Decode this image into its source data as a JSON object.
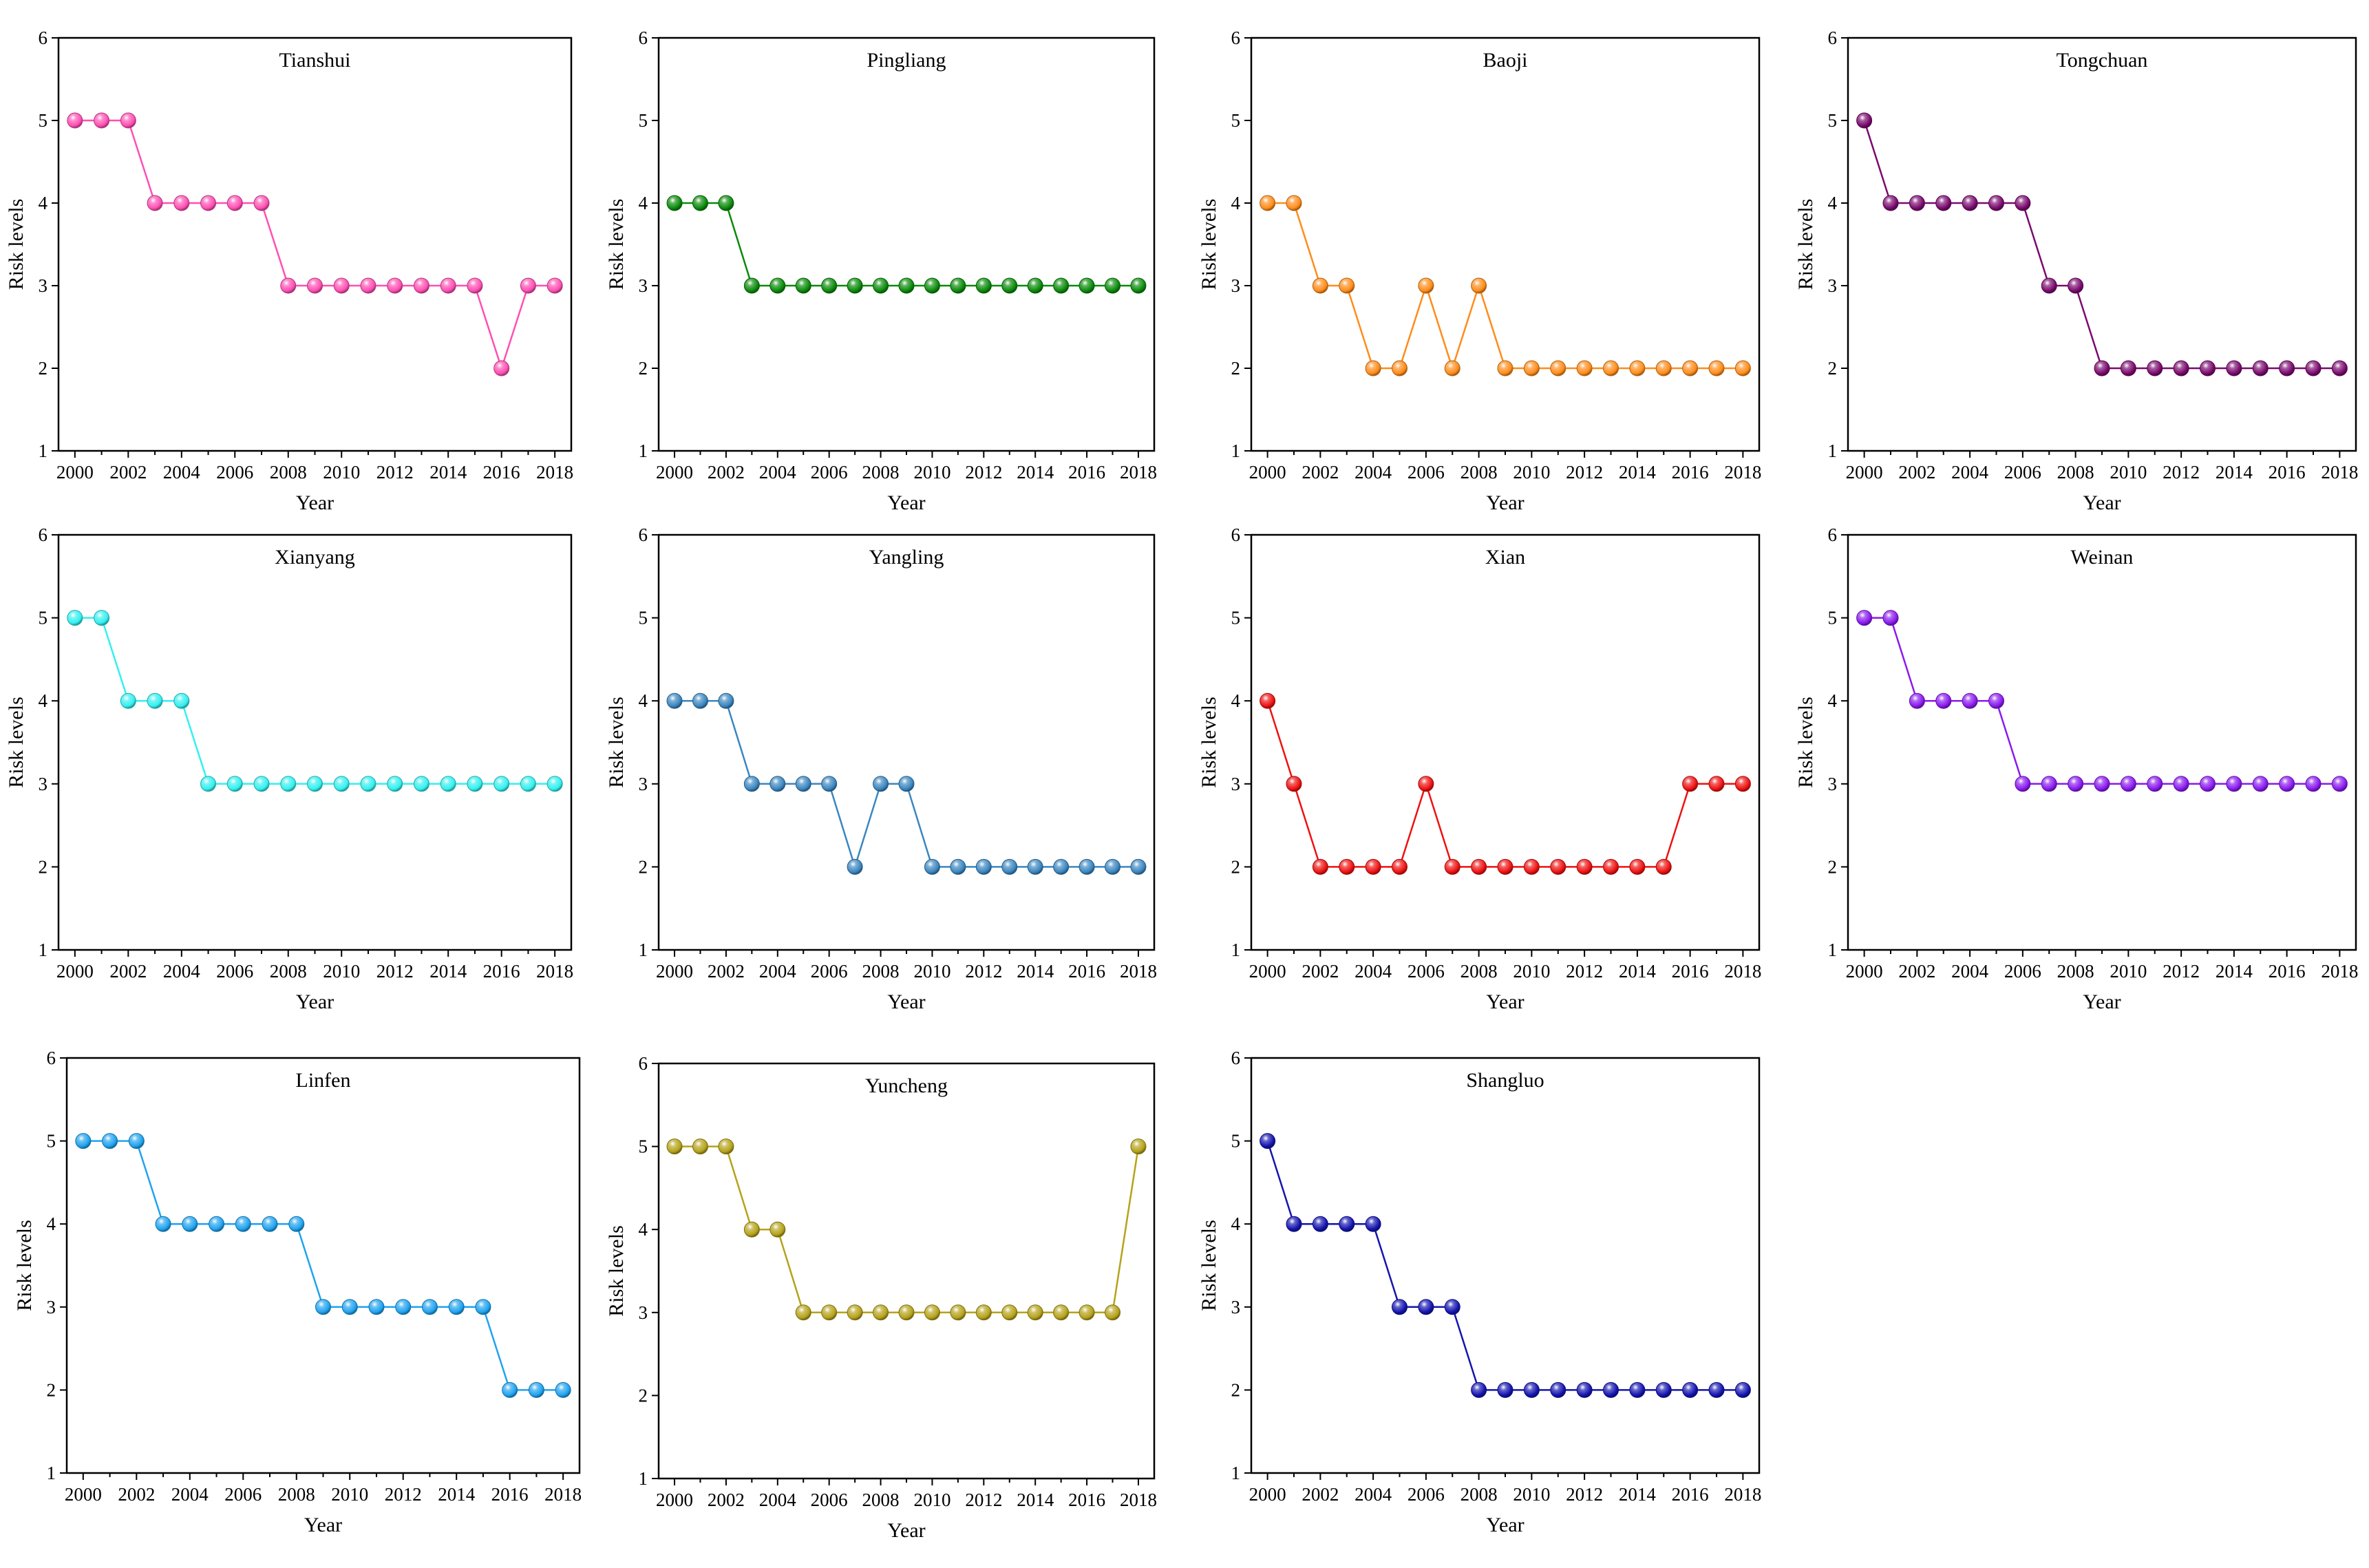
{
  "figure": {
    "years": [
      2000,
      2001,
      2002,
      2003,
      2004,
      2005,
      2006,
      2007,
      2008,
      2009,
      2010,
      2011,
      2012,
      2013,
      2014,
      2015,
      2016,
      2017,
      2018
    ]
  },
  "chart_data": [
    {
      "type": "line",
      "title": "Tianshui",
      "xlabel": "Year",
      "ylabel": "Risk levels",
      "ylim": [
        1,
        6
      ],
      "xlim": [
        2000,
        2018
      ],
      "color": "#ff4fb3",
      "xticks": [
        "2000",
        "2002",
        "2004",
        "2006",
        "2008",
        "2010",
        "2012",
        "2014",
        "2016",
        "2018"
      ],
      "yticks": [
        "1",
        "2",
        "3",
        "4",
        "5",
        "6"
      ],
      "values": [
        5,
        5,
        5,
        4,
        4,
        4,
        4,
        4,
        3,
        3,
        3,
        3,
        3,
        3,
        3,
        3,
        2,
        3,
        3
      ]
    },
    {
      "type": "line",
      "title": "Pingliang",
      "xlabel": "Year",
      "ylabel": "Risk levels",
      "ylim": [
        1,
        6
      ],
      "xlim": [
        2000,
        2018
      ],
      "color": "#0a8a0a",
      "xticks": [
        "2000",
        "2002",
        "2004",
        "2006",
        "2008",
        "2010",
        "2012",
        "2014",
        "2016",
        "2018"
      ],
      "yticks": [
        "1",
        "2",
        "3",
        "4",
        "5",
        "6"
      ],
      "values": [
        4,
        4,
        4,
        3,
        3,
        3,
        3,
        3,
        3,
        3,
        3,
        3,
        3,
        3,
        3,
        3,
        3,
        3,
        3
      ]
    },
    {
      "type": "line",
      "title": "Baoji",
      "xlabel": "Year",
      "ylabel": "Risk levels",
      "ylim": [
        1,
        6
      ],
      "xlim": [
        2000,
        2018
      ],
      "color": "#ff8c1a",
      "xticks": [
        "2000",
        "2002",
        "2004",
        "2006",
        "2008",
        "2010",
        "2012",
        "2014",
        "2016",
        "2018"
      ],
      "yticks": [
        "1",
        "2",
        "3",
        "4",
        "5",
        "6"
      ],
      "values": [
        4,
        4,
        3,
        3,
        2,
        2,
        3,
        2,
        3,
        2,
        2,
        2,
        2,
        2,
        2,
        2,
        2,
        2,
        2
      ]
    },
    {
      "type": "line",
      "title": "Tongchuan",
      "xlabel": "Year",
      "ylabel": "Risk levels",
      "ylim": [
        1,
        6
      ],
      "xlim": [
        2000,
        2018
      ],
      "color": "#7a0a6e",
      "xticks": [
        "2000",
        "2002",
        "2004",
        "2006",
        "2008",
        "2010",
        "2012",
        "2014",
        "2016",
        "2018"
      ],
      "yticks": [
        "1",
        "2",
        "3",
        "4",
        "5",
        "6"
      ],
      "values": [
        5,
        4,
        4,
        4,
        4,
        4,
        4,
        3,
        3,
        2,
        2,
        2,
        2,
        2,
        2,
        2,
        2,
        2,
        2
      ]
    },
    {
      "type": "line",
      "title": "Xianyang",
      "xlabel": "Year",
      "ylabel": "Risk levels",
      "ylim": [
        1,
        6
      ],
      "xlim": [
        2000,
        2018
      ],
      "color": "#33f0f0",
      "xticks": [
        "2000",
        "2002",
        "2004",
        "2006",
        "2008",
        "2010",
        "2012",
        "2014",
        "2016",
        "2018"
      ],
      "yticks": [
        "1",
        "2",
        "3",
        "4",
        "5",
        "6"
      ],
      "values": [
        5,
        5,
        4,
        4,
        4,
        3,
        3,
        3,
        3,
        3,
        3,
        3,
        3,
        3,
        3,
        3,
        3,
        3,
        3
      ]
    },
    {
      "type": "line",
      "title": "Yangling",
      "xlabel": "Year",
      "ylabel": "Risk levels",
      "ylim": [
        1,
        6
      ],
      "xlim": [
        2000,
        2018
      ],
      "color": "#3a86c0",
      "xticks": [
        "2000",
        "2002",
        "2004",
        "2006",
        "2008",
        "2010",
        "2012",
        "2014",
        "2016",
        "2018"
      ],
      "yticks": [
        "1",
        "2",
        "3",
        "4",
        "5",
        "6"
      ],
      "values": [
        4,
        4,
        4,
        3,
        3,
        3,
        3,
        2,
        3,
        3,
        2,
        2,
        2,
        2,
        2,
        2,
        2,
        2,
        2
      ]
    },
    {
      "type": "line",
      "title": "Xian",
      "xlabel": "Year",
      "ylabel": "Risk levels",
      "ylim": [
        1,
        6
      ],
      "xlim": [
        2000,
        2018
      ],
      "color": "#ee1111",
      "xticks": [
        "2000",
        "2002",
        "2004",
        "2006",
        "2008",
        "2010",
        "2012",
        "2014",
        "2016",
        "2018"
      ],
      "yticks": [
        "1",
        "2",
        "3",
        "4",
        "5",
        "6"
      ],
      "values": [
        4,
        3,
        2,
        2,
        2,
        2,
        3,
        2,
        2,
        2,
        2,
        2,
        2,
        2,
        2,
        2,
        3,
        3,
        3
      ]
    },
    {
      "type": "line",
      "title": "Weinan",
      "xlabel": "Year",
      "ylabel": "Risk levels",
      "ylim": [
        1,
        6
      ],
      "xlim": [
        2000,
        2018
      ],
      "color": "#8a1aee",
      "xticks": [
        "2000",
        "2002",
        "2004",
        "2006",
        "2008",
        "2010",
        "2012",
        "2014",
        "2016",
        "2018"
      ],
      "yticks": [
        "1",
        "2",
        "3",
        "4",
        "5",
        "6"
      ],
      "values": [
        5,
        5,
        4,
        4,
        4,
        4,
        3,
        3,
        3,
        3,
        3,
        3,
        3,
        3,
        3,
        3,
        3,
        3,
        3
      ]
    },
    {
      "type": "line",
      "title": "Linfen",
      "xlabel": "Year",
      "ylabel": "Risk levels",
      "ylim": [
        1,
        6
      ],
      "xlim": [
        2000,
        2018
      ],
      "color": "#1fa3f0",
      "xticks": [
        "2000",
        "2002",
        "2004",
        "2006",
        "2008",
        "2010",
        "2012",
        "2014",
        "2016",
        "2018"
      ],
      "yticks": [
        "1",
        "2",
        "3",
        "4",
        "5",
        "6"
      ],
      "values": [
        5,
        5,
        5,
        4,
        4,
        4,
        4,
        4,
        4,
        3,
        3,
        3,
        3,
        3,
        3,
        3,
        2,
        2,
        2
      ]
    },
    {
      "type": "line",
      "title": "Yuncheng",
      "xlabel": "Year",
      "ylabel": "Risk levels",
      "ylim": [
        1,
        6
      ],
      "xlim": [
        2000,
        2018
      ],
      "color": "#b5a21a",
      "xticks": [
        "2000",
        "2002",
        "2004",
        "2006",
        "2008",
        "2010",
        "2012",
        "2014",
        "2016",
        "2018"
      ],
      "yticks": [
        "1",
        "2",
        "3",
        "4",
        "5",
        "6"
      ],
      "values": [
        5,
        5,
        5,
        4,
        4,
        3,
        3,
        3,
        3,
        3,
        3,
        3,
        3,
        3,
        3,
        3,
        3,
        3,
        5
      ]
    },
    {
      "type": "line",
      "title": "Shangluo",
      "xlabel": "Year",
      "ylabel": "Risk levels",
      "ylim": [
        1,
        6
      ],
      "xlim": [
        2000,
        2018
      ],
      "color": "#1414b0",
      "xticks": [
        "2000",
        "2002",
        "2004",
        "2006",
        "2008",
        "2010",
        "2012",
        "2014",
        "2016",
        "2018"
      ],
      "yticks": [
        "1",
        "2",
        "3",
        "4",
        "5",
        "6"
      ],
      "values": [
        5,
        4,
        4,
        4,
        4,
        3,
        3,
        3,
        2,
        2,
        2,
        2,
        2,
        2,
        2,
        2,
        2,
        2,
        2
      ]
    }
  ]
}
